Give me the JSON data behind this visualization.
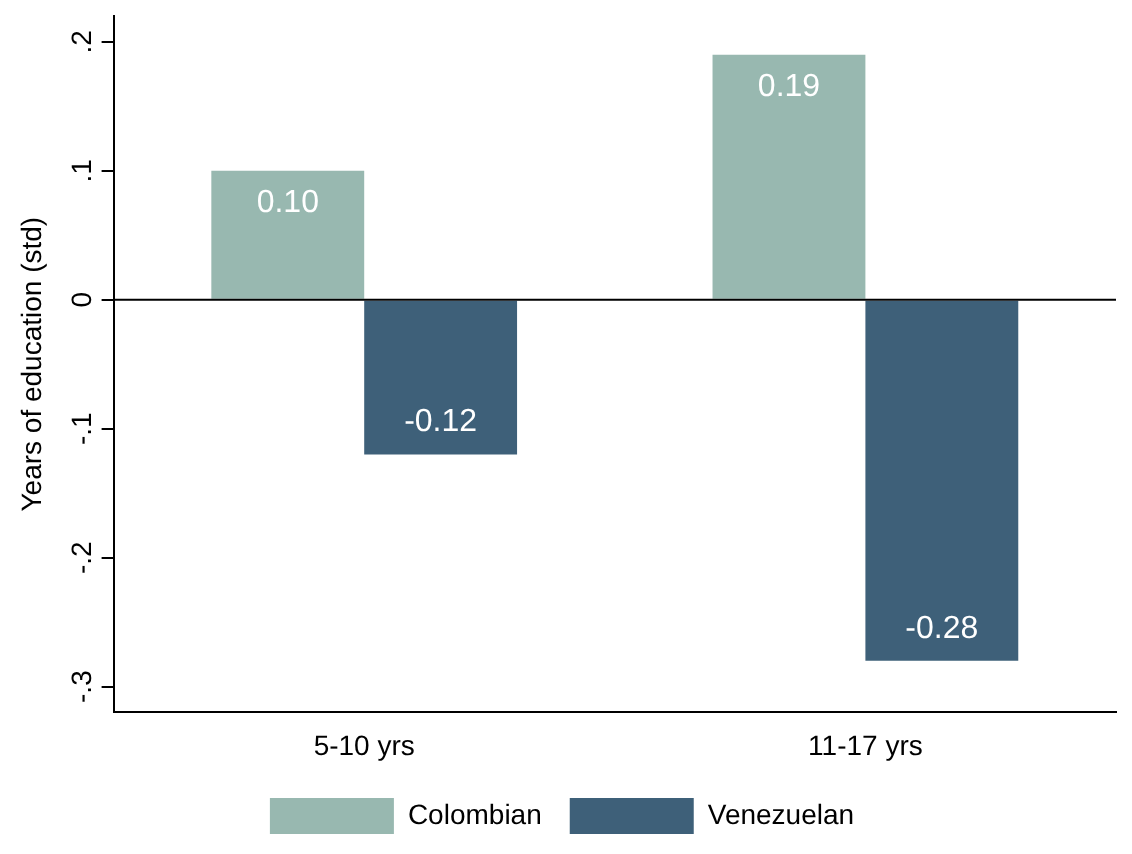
{
  "chart_data": {
    "type": "bar",
    "ylabel": "Years of education (std)",
    "categories": [
      "5-10 yrs",
      "11-17 yrs"
    ],
    "series": [
      {
        "name": "Colombian",
        "color": "#98b8b0",
        "values": [
          0.1,
          0.19
        ],
        "value_labels": [
          "0.10",
          "0.19"
        ]
      },
      {
        "name": "Venezuelan",
        "color": "#3e6079",
        "values": [
          -0.12,
          -0.28
        ],
        "value_labels": [
          "-0.12",
          "-0.28"
        ]
      }
    ],
    "ylim": [
      -0.32,
      0.22
    ],
    "yticks": [
      {
        "value": -0.3,
        "label": "-.3"
      },
      {
        "value": -0.2,
        "label": "-.2"
      },
      {
        "value": -0.1,
        "label": "-.1"
      },
      0,
      {
        "value": 0.1,
        "label": ".1"
      },
      {
        "value": 0.2,
        "label": ".2"
      }
    ],
    "ref_lines": [
      {
        "axis": "y",
        "value": 0,
        "color": "#000000"
      }
    ],
    "grid": false,
    "legend": "bottom"
  }
}
